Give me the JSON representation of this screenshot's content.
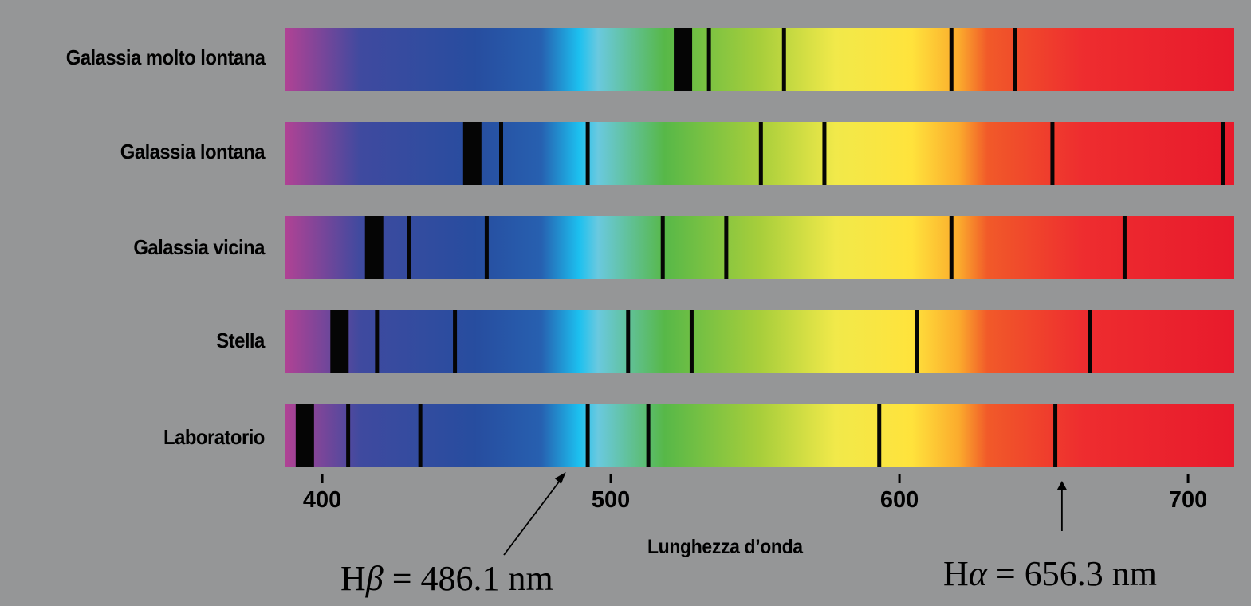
{
  "labels": {
    "rows": [
      "Galassia molto lontana",
      "Galassia lontana",
      "Galassia vicina",
      "Stella",
      "Laboratorio"
    ],
    "axis_title": "Lunghezza d’onda"
  },
  "axis": {
    "min": 387,
    "max": 716,
    "ticks": [
      "400",
      "500",
      "600",
      "700"
    ],
    "tick_values": [
      400,
      500,
      600,
      700
    ]
  },
  "annotations": {
    "hbeta": {
      "symbol": "H",
      "greek": "β",
      "value_text": "486.1 nm",
      "wavelength": 486.1
    },
    "halpha": {
      "symbol": "H",
      "greek": "α",
      "value_text": "656.3 nm",
      "wavelength": 656.3
    }
  },
  "spectrum_colors": [
    "#b14294",
    "#3f4a9f",
    "#274d9f",
    "#2760b0",
    "#1cc0ef",
    "#6ac9df",
    "#57b848",
    "#a7ce3b",
    "#f1e94a",
    "#ffe33c",
    "#fbab2d",
    "#f15a29",
    "#ee2d2f",
    "#e81a2c"
  ],
  "chart_data": {
    "type": "spectrum",
    "x_unit": "nm",
    "xlim": [
      387,
      716
    ],
    "series": [
      {
        "row": "Galassia molto lontana",
        "lines": [
          [
            525,
            4
          ],
          [
            534,
            1
          ],
          [
            560,
            1
          ],
          [
            618,
            1
          ],
          [
            640,
            1
          ]
        ]
      },
      {
        "row": "Galassia lontana",
        "lines": [
          [
            452,
            4
          ],
          [
            462,
            1
          ],
          [
            492,
            1
          ],
          [
            552,
            1
          ],
          [
            574,
            1
          ],
          [
            653,
            1
          ],
          [
            712,
            1
          ]
        ]
      },
      {
        "row": "Galassia vicina",
        "lines": [
          [
            418,
            4
          ],
          [
            430,
            1
          ],
          [
            457,
            1
          ],
          [
            518,
            1
          ],
          [
            540,
            1
          ],
          [
            618,
            1
          ],
          [
            678,
            1
          ]
        ]
      },
      {
        "row": "Stella",
        "lines": [
          [
            406,
            4
          ],
          [
            419,
            1
          ],
          [
            446,
            1
          ],
          [
            506,
            1
          ],
          [
            528,
            1
          ],
          [
            606,
            1
          ],
          [
            666,
            1
          ]
        ]
      },
      {
        "row": "Laboratorio",
        "lines": [
          [
            394,
            4
          ],
          [
            409,
            1
          ],
          [
            434,
            1
          ],
          [
            492,
            1
          ],
          [
            513,
            1
          ],
          [
            593,
            1
          ],
          [
            654,
            1
          ]
        ]
      }
    ]
  }
}
